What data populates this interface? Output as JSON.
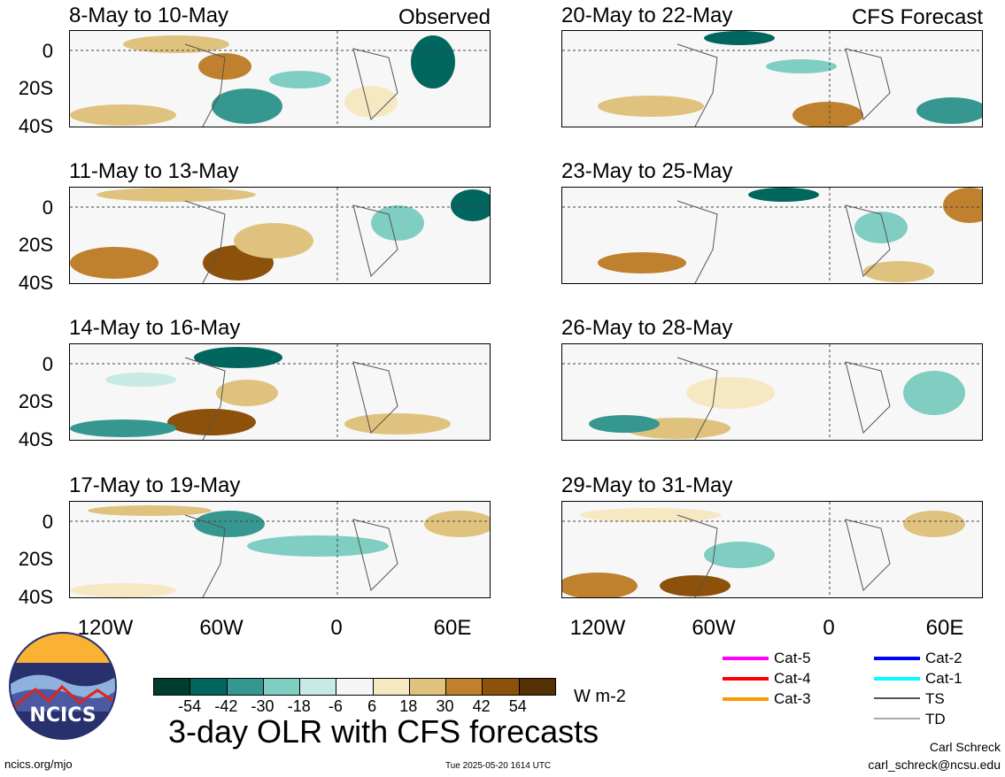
{
  "labels": {
    "observed": "Observed",
    "forecast": "CFS Forecast",
    "unit": "W m-2",
    "title": "3-day OLR with CFS forecasts",
    "url": "ncics.org/mjo",
    "timestamp": "Tue 2025-05-20 1614 UTC",
    "author": "Carl Schreck",
    "email": "carl_schreck@ncsu.edu",
    "logo_text": "NCICS"
  },
  "panels_left": [
    {
      "title": "8-May to 10-May"
    },
    {
      "title": "11-May to 13-May"
    },
    {
      "title": "14-May to 16-May"
    },
    {
      "title": "17-May to 19-May"
    }
  ],
  "panels_right": [
    {
      "title": "20-May to 22-May"
    },
    {
      "title": "23-May to 25-May"
    },
    {
      "title": "26-May to 28-May"
    },
    {
      "title": "29-May to 31-May"
    }
  ],
  "lat_labels": [
    "0",
    "20S",
    "40S"
  ],
  "lon_labels": [
    "120W",
    "60W",
    "0",
    "60E"
  ],
  "colorbar": {
    "labels": [
      "-54",
      "-42",
      "-30",
      "-18",
      "-6",
      "6",
      "18",
      "30",
      "42",
      "54"
    ],
    "colors": [
      "#003c30",
      "#01665e",
      "#35978f",
      "#80cdc1",
      "#c7eae5",
      "#f5f5f5",
      "#f6e8c3",
      "#dfc27d",
      "#bf812d",
      "#8c510a",
      "#543005"
    ]
  },
  "storm_legend": [
    {
      "label": "Cat-5",
      "color": "#ff00ff"
    },
    {
      "label": "Cat-4",
      "color": "#ff0000"
    },
    {
      "label": "Cat-3",
      "color": "#ff9900"
    },
    {
      "label": "Cat-2",
      "color": "#0000ff"
    },
    {
      "label": "Cat-1",
      "color": "#00ffff"
    },
    {
      "label": "TS",
      "color": "#555555"
    },
    {
      "label": "TD",
      "color": "#aaaaaa"
    }
  ]
}
